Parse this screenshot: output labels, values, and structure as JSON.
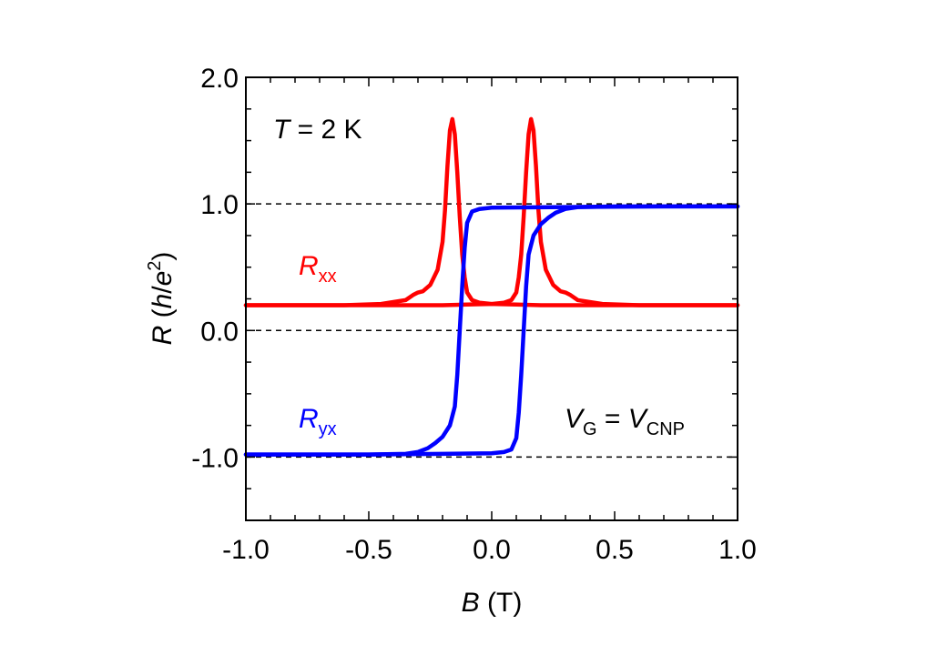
{
  "chart_data": {
    "type": "line",
    "xlabel": {
      "symbol": "B",
      "unit": " (T)"
    },
    "ylabel": {
      "symbol": "R",
      "open": " (",
      "h": "h",
      "slash": "/",
      "e": "e",
      "sup": "2",
      "close": ")"
    },
    "xlim": [
      -1.0,
      1.0
    ],
    "ylim": [
      -1.5,
      2.0
    ],
    "xticks": [
      -1.0,
      -0.5,
      0.0,
      0.5,
      1.0
    ],
    "xtick_labels": [
      "-1.0",
      "-0.5",
      "0.0",
      "0.5",
      "1.0"
    ],
    "yticks": [
      -1.0,
      0.0,
      1.0,
      2.0
    ],
    "ytick_labels": [
      "-1.0",
      "0.0",
      "1.0",
      "2.0"
    ],
    "reference_lines_y": [
      1.0,
      0.0,
      -1.0
    ],
    "grid": false,
    "annotations": {
      "temperature": {
        "sym": "T",
        "rest": " = 2 K"
      },
      "gate": {
        "v1": "V",
        "sub1": "G",
        "eq": " = ",
        "v2": "V",
        "sub2": "CNP"
      },
      "rxx_label": {
        "sym": "R",
        "sub": "xx"
      },
      "ryx_label": {
        "sym": "R",
        "sub": "yx"
      }
    },
    "series": [
      {
        "key": "rxx_down",
        "color": "#ff0000",
        "points": [
          [
            1.0,
            0.2
          ],
          [
            0.5,
            0.2
          ],
          [
            0.3,
            0.2
          ],
          [
            0.2,
            0.2
          ],
          [
            0.1,
            0.205
          ],
          [
            0.0,
            0.21
          ],
          [
            -0.05,
            0.22
          ],
          [
            -0.08,
            0.24
          ],
          [
            -0.1,
            0.3
          ],
          [
            -0.11,
            0.42
          ],
          [
            -0.12,
            0.6
          ],
          [
            -0.13,
            0.9
          ],
          [
            -0.14,
            1.25
          ],
          [
            -0.15,
            1.55
          ],
          [
            -0.16,
            1.67
          ],
          [
            -0.17,
            1.58
          ],
          [
            -0.18,
            1.3
          ],
          [
            -0.19,
            0.95
          ],
          [
            -0.2,
            0.7
          ],
          [
            -0.22,
            0.48
          ],
          [
            -0.25,
            0.36
          ],
          [
            -0.28,
            0.31
          ],
          [
            -0.3,
            0.3
          ],
          [
            -0.32,
            0.28
          ],
          [
            -0.35,
            0.24
          ],
          [
            -0.45,
            0.21
          ],
          [
            -0.6,
            0.2
          ],
          [
            -0.8,
            0.2
          ],
          [
            -1.0,
            0.2
          ]
        ]
      },
      {
        "key": "rxx_up",
        "color": "#ff0000",
        "points": [
          [
            -1.0,
            0.2
          ],
          [
            -0.5,
            0.2
          ],
          [
            -0.3,
            0.2
          ],
          [
            -0.2,
            0.2
          ],
          [
            -0.1,
            0.205
          ],
          [
            0.0,
            0.21
          ],
          [
            0.05,
            0.22
          ],
          [
            0.08,
            0.24
          ],
          [
            0.1,
            0.3
          ],
          [
            0.11,
            0.42
          ],
          [
            0.12,
            0.6
          ],
          [
            0.13,
            0.9
          ],
          [
            0.14,
            1.25
          ],
          [
            0.15,
            1.55
          ],
          [
            0.16,
            1.67
          ],
          [
            0.17,
            1.58
          ],
          [
            0.18,
            1.3
          ],
          [
            0.19,
            0.95
          ],
          [
            0.2,
            0.7
          ],
          [
            0.22,
            0.48
          ],
          [
            0.25,
            0.36
          ],
          [
            0.28,
            0.31
          ],
          [
            0.3,
            0.3
          ],
          [
            0.32,
            0.28
          ],
          [
            0.35,
            0.24
          ],
          [
            0.45,
            0.21
          ],
          [
            0.6,
            0.2
          ],
          [
            0.8,
            0.2
          ],
          [
            1.0,
            0.2
          ]
        ]
      },
      {
        "key": "ryx_down",
        "color": "#0000ff",
        "points": [
          [
            1.0,
            0.98
          ],
          [
            0.7,
            0.98
          ],
          [
            0.3,
            0.975
          ],
          [
            0.0,
            0.97
          ],
          [
            -0.05,
            0.96
          ],
          [
            -0.08,
            0.94
          ],
          [
            -0.1,
            0.85
          ],
          [
            -0.11,
            0.65
          ],
          [
            -0.12,
            0.35
          ],
          [
            -0.13,
            0.0
          ],
          [
            -0.14,
            -0.35
          ],
          [
            -0.15,
            -0.6
          ],
          [
            -0.17,
            -0.75
          ],
          [
            -0.2,
            -0.84
          ],
          [
            -0.23,
            -0.89
          ],
          [
            -0.26,
            -0.93
          ],
          [
            -0.3,
            -0.96
          ],
          [
            -0.35,
            -0.975
          ],
          [
            -0.5,
            -0.98
          ],
          [
            -0.7,
            -0.98
          ],
          [
            -1.0,
            -0.98
          ]
        ]
      },
      {
        "key": "ryx_up",
        "color": "#0000ff",
        "points": [
          [
            -1.0,
            -0.98
          ],
          [
            -0.5,
            -0.98
          ],
          [
            -0.2,
            -0.975
          ],
          [
            0.0,
            -0.97
          ],
          [
            0.05,
            -0.96
          ],
          [
            0.08,
            -0.94
          ],
          [
            0.1,
            -0.85
          ],
          [
            0.11,
            -0.65
          ],
          [
            0.12,
            -0.35
          ],
          [
            0.13,
            0.0
          ],
          [
            0.14,
            0.35
          ],
          [
            0.15,
            0.6
          ],
          [
            0.17,
            0.75
          ],
          [
            0.2,
            0.84
          ],
          [
            0.23,
            0.89
          ],
          [
            0.26,
            0.93
          ],
          [
            0.3,
            0.96
          ],
          [
            0.35,
            0.975
          ],
          [
            0.5,
            0.98
          ],
          [
            0.7,
            0.98
          ],
          [
            1.0,
            0.98
          ]
        ]
      }
    ]
  }
}
